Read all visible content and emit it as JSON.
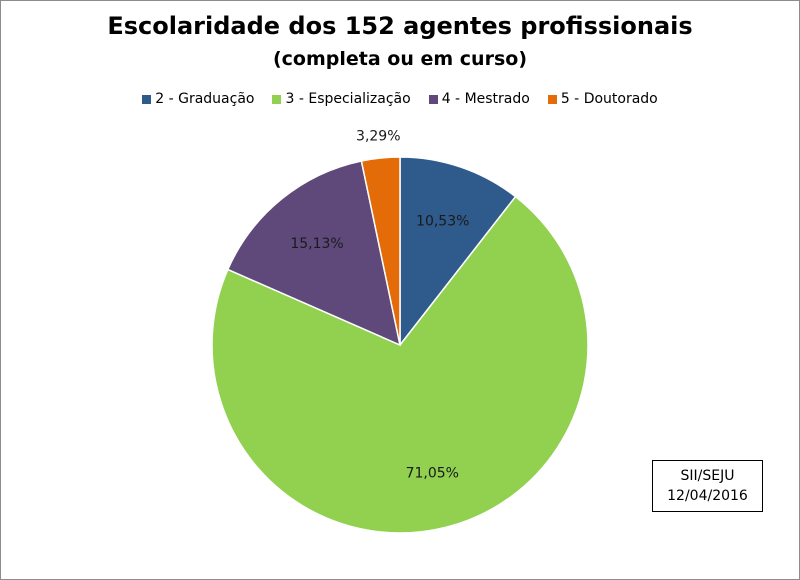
{
  "chart_data": {
    "type": "pie",
    "title": "Escolaridade dos 152 agentes profissionais",
    "subtitle": "(completa ou em curso)",
    "categories": [
      "2 - Graduação",
      "3 - Especialização",
      "4 - Mestrado",
      "5 - Doutorado"
    ],
    "values": [
      10.53,
      71.05,
      15.13,
      3.29
    ],
    "data_labels": [
      "10,53%",
      "71,05%",
      "15,13%",
      "3,29%"
    ],
    "colors": [
      "#2f5a8c",
      "#92d050",
      "#5f497a",
      "#e36c09"
    ],
    "legend_position": "top",
    "start_angle": "12 o'clock",
    "direction": "clockwise"
  },
  "source_note": {
    "line1": "SII/SEJU",
    "line2": "12/04/2016"
  }
}
